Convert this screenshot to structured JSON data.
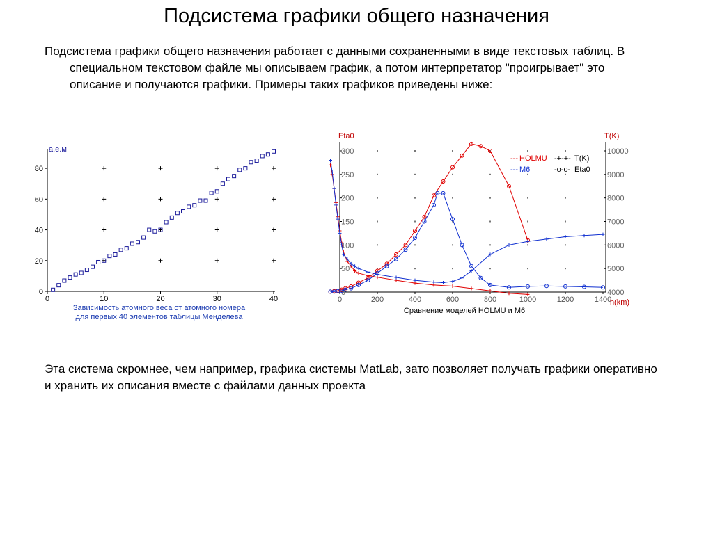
{
  "slide": {
    "title": "Подсистема графики общего назначения",
    "intro": "Подсистема графики общего назначения работает с данными сохраненными в виде текстовых таблиц. В специальном текстовом файле мы описываем график, а потом интерпретатор \"проигрывает\" это описание и получаются графики. Примеры таких графиков приведены ниже:",
    "outro": "Эта система скромнее, чем например, графика системы MatLab, зато позволяет получать графики оперативно и хранить их описания вместе с файлами данных проекта"
  },
  "chart_data": [
    {
      "type": "scatter",
      "ylabel": "а.е.м",
      "caption_lines": [
        "Зависимость атомного веса от атомного номера",
        "для первых 40 элементов таблицы Менделева"
      ],
      "xlim": [
        0,
        40
      ],
      "ylim": [
        0,
        90
      ],
      "x_ticks": [
        "0",
        "10",
        "20",
        "30",
        "40"
      ],
      "y_ticks": [
        "0",
        "20",
        "40",
        "60",
        "80"
      ],
      "grid": "plus-markers",
      "marker_color": "#1a1a9a",
      "series": [
        {
          "x": [
            1,
            2,
            3,
            4,
            5,
            6,
            7,
            8,
            9,
            10,
            11,
            12,
            13,
            14,
            15,
            16,
            17,
            18,
            19,
            20,
            21,
            22,
            23,
            24,
            25,
            26,
            27,
            28,
            29,
            30,
            31,
            32,
            33,
            34,
            35,
            36,
            37,
            38,
            39,
            40
          ],
          "values": [
            1,
            4,
            7,
            9,
            11,
            12,
            14,
            16,
            19,
            20,
            23,
            24,
            27,
            28,
            31,
            32,
            35,
            40,
            39,
            40,
            45,
            48,
            51,
            52,
            55,
            56,
            59,
            59,
            64,
            65,
            70,
            73,
            75,
            79,
            80,
            84,
            85,
            88,
            89,
            91
          ]
        }
      ]
    },
    {
      "type": "line",
      "caption": "Сравнение моделей HOLMU и M6",
      "xlabel": "h(km)",
      "ylabel_left": "Eta0",
      "ylabel_right": "T(K)",
      "xlim": [
        -50,
        1400
      ],
      "ylim_left": [
        0,
        300
      ],
      "ylim_right": [
        4000,
        10000
      ],
      "x_ticks": [
        "0",
        "200",
        "400",
        "600",
        "800",
        "1000",
        "1200",
        "1400"
      ],
      "y_ticks_left": [
        "0",
        "50",
        "100",
        "150",
        "200",
        "250",
        "300"
      ],
      "y_ticks_right": [
        "4000",
        "5000",
        "6000",
        "7000",
        "8000",
        "9000",
        "10000"
      ],
      "legend": {
        "placement": "top-right",
        "models": [
          {
            "name": "HOLMU",
            "color": "#e00000"
          },
          {
            "name": "M6",
            "color": "#1030d0"
          }
        ],
        "quantities": [
          {
            "name": "T(K)",
            "marker": "plus"
          },
          {
            "name": "Eta0",
            "marker": "circle"
          }
        ]
      },
      "series": [
        {
          "model": "HOLMU",
          "quantity": "Eta0",
          "axis": "left",
          "color": "#e00000",
          "x": [
            -50,
            -30,
            -10,
            10,
            30,
            60,
            100,
            150,
            200,
            250,
            300,
            350,
            400,
            450,
            500,
            550,
            600,
            650,
            700,
            750,
            800,
            900,
            1000
          ],
          "values": [
            1,
            2,
            3,
            5,
            8,
            12,
            20,
            30,
            45,
            60,
            80,
            100,
            130,
            160,
            205,
            235,
            265,
            290,
            315,
            310,
            300,
            225,
            110
          ]
        },
        {
          "model": "M6",
          "quantity": "Eta0",
          "axis": "left",
          "color": "#1030d0",
          "x": [
            -50,
            -30,
            -10,
            10,
            30,
            60,
            100,
            150,
            200,
            250,
            300,
            350,
            400,
            450,
            500,
            520,
            550,
            600,
            650,
            700,
            750,
            800,
            900,
            1000,
            1100,
            1200,
            1300,
            1400
          ],
          "values": [
            1,
            1,
            2,
            3,
            5,
            8,
            15,
            25,
            40,
            55,
            70,
            90,
            115,
            150,
            185,
            210,
            210,
            155,
            100,
            55,
            30,
            15,
            10,
            12,
            13,
            12,
            11,
            10
          ]
        },
        {
          "model": "HOLMU",
          "quantity": "T(K)",
          "axis": "right",
          "color": "#e00000",
          "x": [
            -50,
            -40,
            -30,
            -20,
            -10,
            0,
            10,
            20,
            40,
            60,
            80,
            100,
            150,
            200,
            300,
            400,
            500,
            600,
            700,
            800,
            900,
            1000
          ],
          "values": [
            9400,
            9000,
            8400,
            7800,
            7200,
            6600,
            6100,
            5700,
            5300,
            5100,
            4900,
            4800,
            4700,
            4630,
            4500,
            4380,
            4300,
            4250,
            4150,
            4050,
            3950,
            3900
          ]
        },
        {
          "model": "M6",
          "quantity": "T(K)",
          "axis": "right",
          "color": "#1030d0",
          "x": [
            -50,
            -40,
            -30,
            -20,
            -10,
            0,
            10,
            20,
            40,
            60,
            80,
            100,
            150,
            200,
            300,
            400,
            500,
            550,
            600,
            650,
            700,
            800,
            900,
            1000,
            1100,
            1200,
            1300,
            1400
          ],
          "values": [
            9600,
            9100,
            8400,
            7700,
            7100,
            6500,
            6000,
            5600,
            5400,
            5200,
            5100,
            5000,
            4850,
            4750,
            4620,
            4500,
            4420,
            4400,
            4450,
            4600,
            4900,
            5600,
            6000,
            6150,
            6250,
            6350,
            6400,
            6450
          ]
        }
      ]
    }
  ]
}
